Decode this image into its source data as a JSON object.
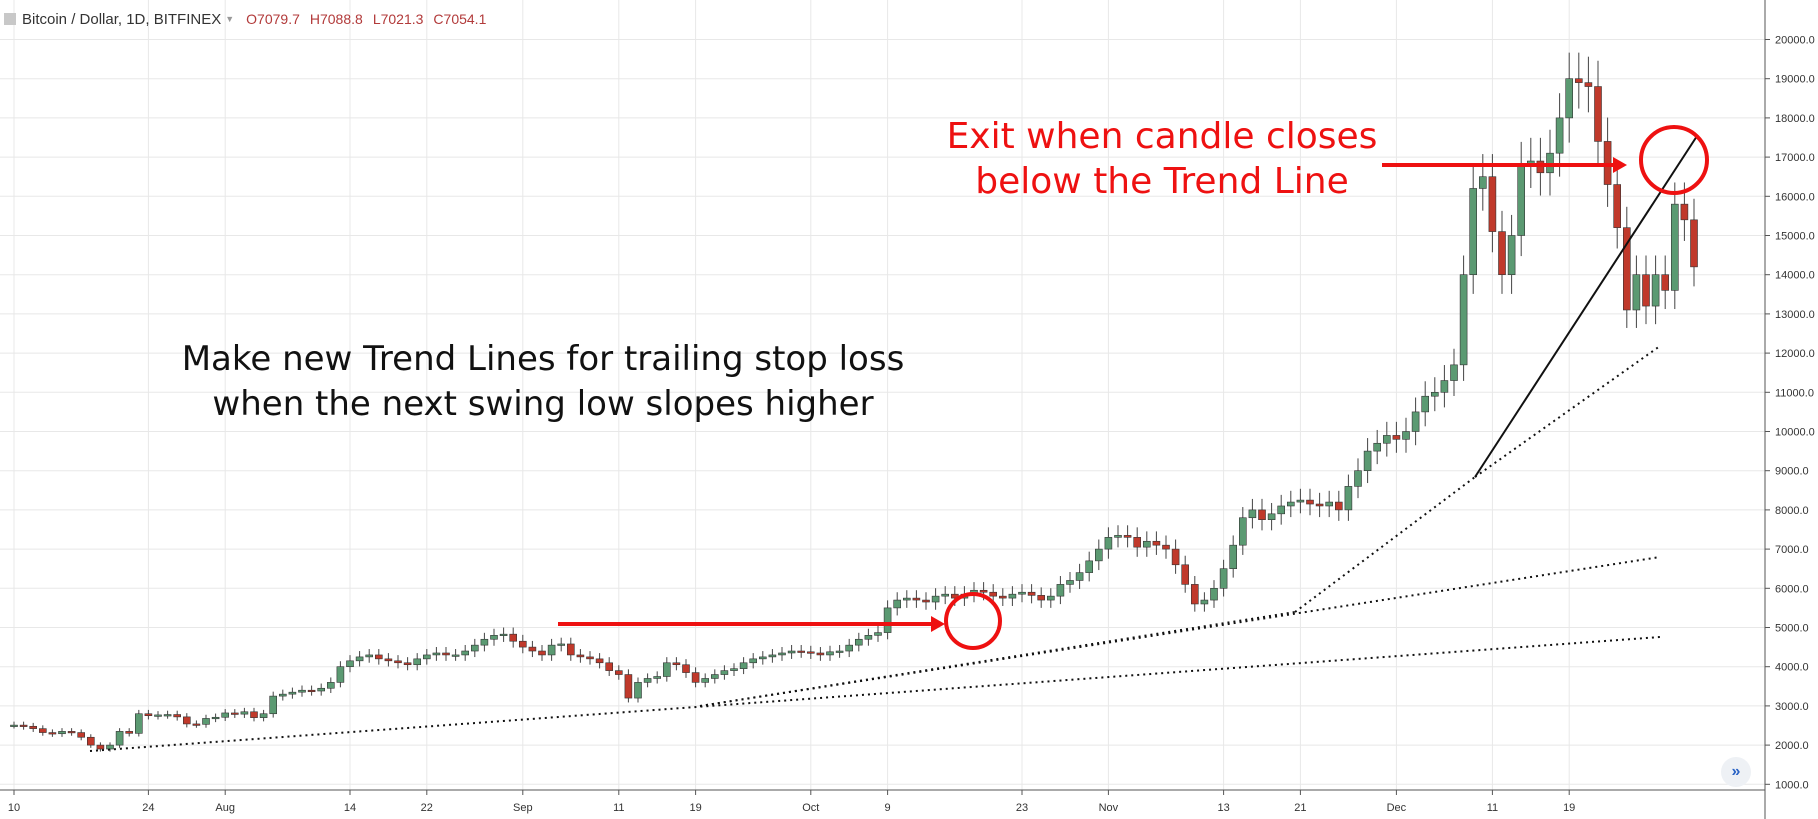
{
  "header": {
    "symbol": "Bitcoin / Dollar, 1D, BITFINEX",
    "open": "O7079.7",
    "high": "H7088.8",
    "low": "L7021.3",
    "close": "C7054.1"
  },
  "annotations": {
    "make_new_line1": "Make new Trend Lines for trailing stop loss",
    "make_new_line2": "when the next swing low slopes higher",
    "exit_line1": "Exit when candle closes",
    "exit_line2": "below the Trend Line"
  },
  "colors": {
    "up": "#5b9a72",
    "down": "#c0392b",
    "annotation_red": "#ee1111",
    "grid": "#e8e8e8",
    "axis_text": "#333333"
  },
  "chart_data": {
    "type": "candlestick",
    "title": "Bitcoin / Dollar, 1D, BITFINEX",
    "y_axis_ticks": [
      "20000.0",
      "19000.0",
      "18000.0",
      "17000.0",
      "16000.0",
      "15000.0",
      "14000.0",
      "13000.0",
      "12000.0",
      "11000.0",
      "10000.0",
      "9000.0",
      "8000.0",
      "7000.0",
      "6000.0",
      "5000.0",
      "4000.0",
      "3000.0",
      "2000.0",
      "1000.0"
    ],
    "x_axis_ticks": [
      {
        "label": "10",
        "index": 0
      },
      {
        "label": "24",
        "index": 14
      },
      {
        "label": "Aug",
        "index": 22
      },
      {
        "label": "14",
        "index": 35
      },
      {
        "label": "22",
        "index": 43
      },
      {
        "label": "Sep",
        "index": 53
      },
      {
        "label": "11",
        "index": 63
      },
      {
        "label": "19",
        "index": 71
      },
      {
        "label": "Oct",
        "index": 83
      },
      {
        "label": "9",
        "index": 91
      },
      {
        "label": "23",
        "index": 105
      },
      {
        "label": "Nov",
        "index": 114
      },
      {
        "label": "13",
        "index": 126
      },
      {
        "label": "21",
        "index": 134
      },
      {
        "label": "Dec",
        "index": 144
      },
      {
        "label": "11",
        "index": 154
      },
      {
        "label": "19",
        "index": 162
      }
    ],
    "ylim": [
      700,
      20900
    ],
    "candles_close": [
      2510,
      2480,
      2420,
      2320,
      2290,
      2350,
      2320,
      2200,
      2000,
      1900,
      2000,
      2350,
      2300,
      2800,
      2750,
      2770,
      2780,
      2720,
      2540,
      2530,
      2680,
      2710,
      2820,
      2790,
      2850,
      2700,
      2800,
      3250,
      3300,
      3350,
      3400,
      3380,
      3450,
      3600,
      4000,
      4150,
      4250,
      4300,
      4200,
      4150,
      4100,
      4050,
      4200,
      4300,
      4350,
      4300,
      4300,
      4400,
      4550,
      4700,
      4800,
      4830,
      4650,
      4500,
      4400,
      4300,
      4550,
      4580,
      4300,
      4250,
      4200,
      4100,
      3900,
      3800,
      3200,
      3600,
      3700,
      3750,
      4100,
      4050,
      3850,
      3600,
      3700,
      3800,
      3900,
      3950,
      4100,
      4200,
      4250,
      4300,
      4350,
      4400,
      4380,
      4350,
      4300,
      4380,
      4400,
      4550,
      4700,
      4800,
      4870,
      5500,
      5700,
      5750,
      5700,
      5650,
      5800,
      5850,
      5750,
      5850,
      5950,
      5900,
      5800,
      5750,
      5850,
      5900,
      5820,
      5700,
      5800,
      6100,
      6200,
      6400,
      6700,
      7000,
      7300,
      7350,
      7300,
      7050,
      7200,
      7100,
      7000,
      6600,
      6100,
      5600,
      5700,
      6000,
      6500,
      7100,
      7800,
      8000,
      7750,
      7900,
      8100,
      8200,
      8250,
      8150,
      8100,
      8200,
      8000,
      8600,
      9000,
      9500,
      9700,
      9900,
      9800,
      10000,
      10500,
      10900,
      11000,
      11300,
      11700,
      14000,
      16200,
      16500,
      15100,
      14000,
      15000,
      16800,
      16900,
      16600,
      17100,
      18000,
      19000,
      18900,
      18800,
      17400,
      16300,
      15200,
      13100,
      14000,
      13200,
      14000,
      13600,
      15800,
      15400,
      14200
    ]
  }
}
